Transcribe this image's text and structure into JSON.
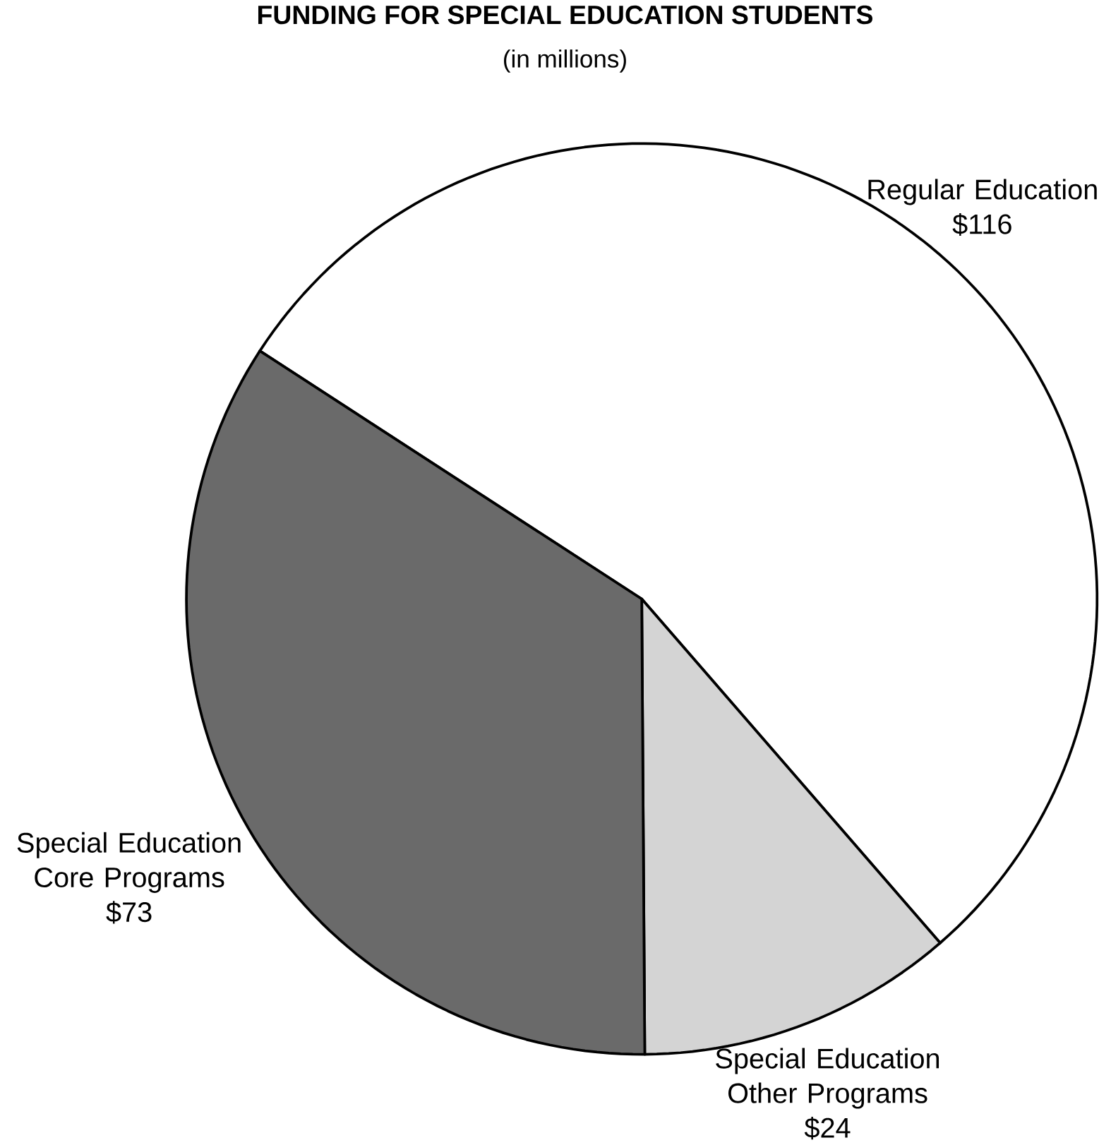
{
  "chart_data": {
    "type": "pie",
    "title": "FUNDING FOR SPECIAL EDUCATION STUDENTS",
    "subtitle": "(in millions)",
    "categories": [
      "Regular Education",
      "Special Education Other Programs",
      "Special Education Core Programs"
    ],
    "values": [
      116,
      24,
      73
    ],
    "value_labels": [
      "$116",
      "$24",
      "$73"
    ],
    "colors": [
      "#ffffff",
      "#d4d4d4",
      "#6a6a6a"
    ]
  }
}
